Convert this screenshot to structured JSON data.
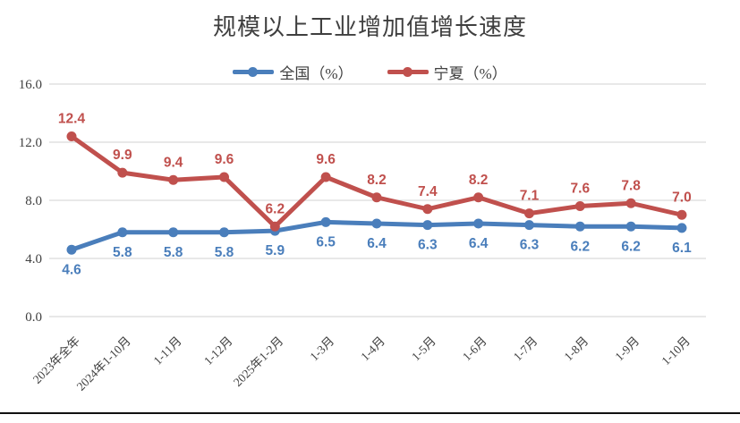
{
  "chart_data": {
    "type": "line",
    "title": "规模以上工业增加值增长速度",
    "categories": [
      "2023年全年",
      "2024年1-10月",
      "1-11月",
      "1-12月",
      "2025年1-2月",
      "1-3月",
      "1-4月",
      "1-5月",
      "1-6月",
      "1-7月",
      "1-8月",
      "1-9月",
      "1-10月"
    ],
    "series": [
      {
        "name": "全国（%）",
        "color": "#4A7EBB",
        "label_position": "below",
        "values": [
          4.6,
          5.8,
          5.8,
          5.8,
          5.9,
          6.5,
          6.4,
          6.3,
          6.4,
          6.3,
          6.2,
          6.2,
          6.1
        ]
      },
      {
        "name": "宁夏（%）",
        "color": "#C0504D",
        "label_position": "above",
        "values": [
          12.4,
          9.9,
          9.4,
          9.6,
          6.2,
          9.6,
          8.2,
          7.4,
          8.2,
          7.1,
          7.6,
          7.8,
          7.0
        ]
      }
    ],
    "xlabel": "",
    "ylabel": "",
    "ylim": [
      0,
      16
    ],
    "yticks": [
      0,
      4,
      8,
      12,
      16
    ],
    "ytick_labels": [
      "0.0",
      "4.0",
      "8.0",
      "12.0",
      "16.0"
    ],
    "grid": true,
    "legend_position": "top",
    "gridline_color": "#D9D9D9",
    "axis_text_color": "#404040"
  }
}
